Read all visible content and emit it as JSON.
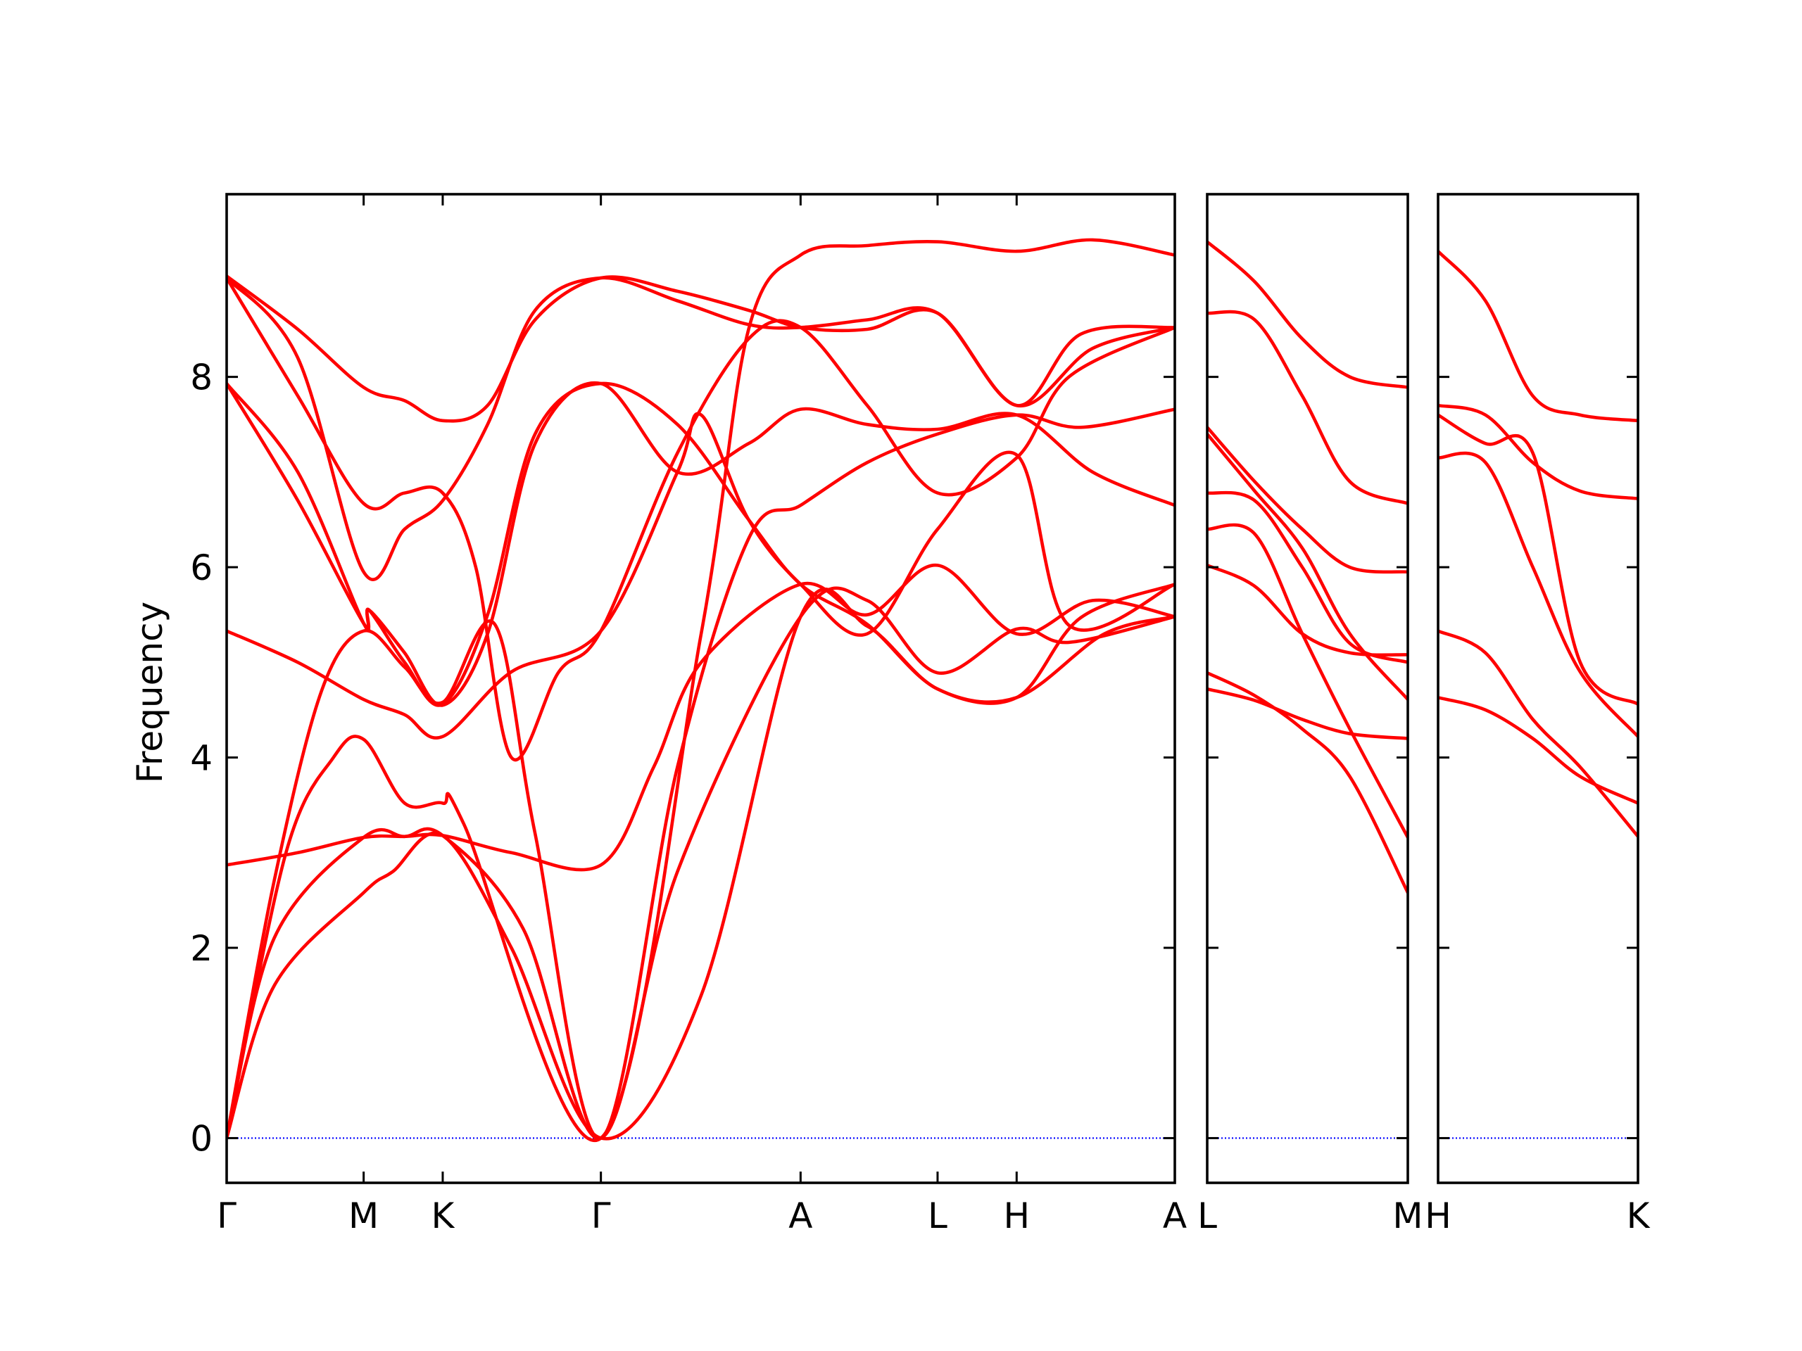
{
  "chart_data": {
    "type": "line",
    "title": "",
    "ylabel": "Frequency",
    "xlabel": "",
    "ylim": [
      -0.47,
      9.92
    ],
    "yticks": [
      0,
      2,
      4,
      6,
      8
    ],
    "grid": false,
    "colors": {
      "bands": "#ff0000",
      "zero_line": "#0000ff",
      "axes": "#000000"
    },
    "panels": [
      {
        "path": [
          "Γ",
          "M",
          "K",
          "Γ",
          "A",
          "L",
          "H",
          "A"
        ],
        "x": [
          0.0,
          0.5774,
          0.9107,
          1.5774,
          2.4191,
          2.9965,
          3.3298,
          3.9965
        ],
        "xlim": [
          0.0,
          3.9965
        ],
        "bands": [
          [
            [
              0.0,
              0.0
            ],
            [
              0.2,
              1.6
            ],
            [
              0.5774,
              2.58
            ],
            [
              0.7,
              2.8
            ],
            [
              0.9107,
              3.18
            ],
            [
              1.2,
              2.0
            ],
            [
              1.5774,
              0.0
            ],
            [
              2.0,
              1.5
            ],
            [
              2.4191,
              5.48
            ],
            [
              2.7,
              5.38
            ],
            [
              2.9965,
              4.72
            ],
            [
              3.3298,
              4.63
            ],
            [
              3.7,
              5.3
            ],
            [
              3.9965,
              5.48
            ]
          ],
          [
            [
              0.0,
              0.0
            ],
            [
              0.2,
              2.1
            ],
            [
              0.5774,
              3.16
            ],
            [
              0.75,
              3.17
            ],
            [
              0.9107,
              3.18
            ],
            [
              1.25,
              2.2
            ],
            [
              1.5774,
              0.0
            ],
            [
              1.9,
              2.8
            ],
            [
              2.4191,
              5.48
            ],
            [
              2.7,
              5.65
            ],
            [
              2.9965,
              4.89
            ],
            [
              3.3298,
              5.35
            ],
            [
              3.55,
              5.21
            ],
            [
              3.9965,
              5.48
            ]
          ],
          [
            [
              0.0,
              2.87
            ],
            [
              0.3,
              3.0
            ],
            [
              0.5774,
              3.16
            ],
            [
              0.75,
              3.17
            ],
            [
              0.9107,
              3.18
            ],
            [
              1.2,
              3.0
            ],
            [
              1.5774,
              2.87
            ],
            [
              1.8,
              3.9
            ],
            [
              2.0,
              5.0
            ],
            [
              2.4191,
              5.82
            ],
            [
              2.7,
              5.5
            ],
            [
              2.9965,
              6.02
            ],
            [
              3.3298,
              5.3
            ],
            [
              3.65,
              5.65
            ],
            [
              3.9965,
              5.48
            ]
          ],
          [
            [
              0.0,
              0.0
            ],
            [
              0.2,
              2.7
            ],
            [
              0.4,
              4.7
            ],
            [
              0.5774,
              5.33
            ],
            [
              0.75,
              4.95
            ],
            [
              0.9107,
              4.58
            ],
            [
              1.13,
              5.4
            ],
            [
              1.3,
              3.2
            ],
            [
              1.5774,
              0.0
            ],
            [
              1.9,
              3.9
            ],
            [
              2.2,
              6.3
            ],
            [
              2.4191,
              6.65
            ],
            [
              2.7,
              7.1
            ],
            [
              2.9965,
              7.4
            ],
            [
              3.3298,
              7.6
            ],
            [
              3.6,
              7.47
            ],
            [
              3.9965,
              7.66
            ]
          ],
          [
            [
              0.0,
              5.33
            ],
            [
              0.3,
              5.0
            ],
            [
              0.5774,
              4.61
            ],
            [
              0.75,
              4.45
            ],
            [
              0.9107,
              4.22
            ],
            [
              1.2,
              4.9
            ],
            [
              1.5774,
              5.33
            ],
            [
              1.9,
              7.0
            ],
            [
              2.0,
              7.6
            ],
            [
              2.2,
              6.5
            ],
            [
              2.4191,
              5.82
            ],
            [
              2.7,
              5.3
            ],
            [
              2.9965,
              6.4
            ],
            [
              3.3298,
              7.18
            ],
            [
              3.55,
              5.39
            ],
            [
              3.9965,
              5.82
            ]
          ],
          [
            [
              0.0,
              0.0
            ],
            [
              0.25,
              3.0
            ],
            [
              0.45,
              4.0
            ],
            [
              0.5774,
              4.19
            ],
            [
              0.75,
              3.52
            ],
            [
              0.9107,
              3.52
            ],
            [
              1.0,
              3.3
            ],
            [
              1.5774,
              0.0
            ],
            [
              2.0,
              5.3
            ],
            [
              2.2,
              8.5
            ],
            [
              2.4191,
              9.28
            ],
            [
              2.7,
              9.38
            ],
            [
              2.9965,
              9.42
            ],
            [
              3.3298,
              9.32
            ],
            [
              3.65,
              9.44
            ],
            [
              3.9965,
              9.28
            ]
          ],
          [
            [
              0.0,
              7.93
            ],
            [
              0.3,
              6.7
            ],
            [
              0.5774,
              5.41
            ],
            [
              0.6,
              5.55
            ],
            [
              0.75,
              5.0
            ],
            [
              0.9107,
              4.56
            ],
            [
              1.1,
              5.5
            ],
            [
              1.3,
              7.4
            ],
            [
              1.5774,
              7.93
            ],
            [
              1.9,
              7.5
            ],
            [
              2.2,
              6.5
            ],
            [
              2.4191,
              5.82
            ],
            [
              2.7,
              5.4
            ],
            [
              2.9965,
              4.72
            ],
            [
              3.3298,
              4.63
            ],
            [
              3.6,
              5.47
            ],
            [
              3.9965,
              5.82
            ]
          ],
          [
            [
              0.0,
              7.93
            ],
            [
              0.3,
              7.0
            ],
            [
              0.5774,
              5.41
            ],
            [
              0.6,
              5.55
            ],
            [
              0.75,
              5.1
            ],
            [
              0.9107,
              4.55
            ],
            [
              1.1,
              5.3
            ],
            [
              1.3,
              7.3
            ],
            [
              1.5774,
              7.93
            ],
            [
              1.9,
              7.0
            ],
            [
              2.2,
              7.3
            ],
            [
              2.4191,
              7.66
            ],
            [
              2.7,
              7.5
            ],
            [
              2.9965,
              7.45
            ],
            [
              3.3298,
              7.6
            ],
            [
              3.65,
              7.0
            ],
            [
              3.9965,
              6.65
            ]
          ],
          [
            [
              0.0,
              9.04
            ],
            [
              0.3,
              7.8
            ],
            [
              0.5774,
              6.67
            ],
            [
              0.75,
              6.78
            ],
            [
              0.9107,
              6.78
            ],
            [
              1.05,
              6.0
            ],
            [
              1.2,
              4.0
            ],
            [
              1.4,
              4.9
            ],
            [
              1.5774,
              5.33
            ],
            [
              1.9,
              7.2
            ],
            [
              2.2,
              8.4
            ],
            [
              2.4191,
              8.52
            ],
            [
              2.7,
              7.7
            ],
            [
              2.9965,
              6.78
            ],
            [
              3.3298,
              7.15
            ],
            [
              3.55,
              8.0
            ],
            [
              3.9965,
              8.52
            ]
          ],
          [
            [
              0.0,
              9.04
            ],
            [
              0.3,
              8.2
            ],
            [
              0.5774,
              5.95
            ],
            [
              0.75,
              6.4
            ],
            [
              0.9107,
              6.7
            ],
            [
              1.1,
              7.5
            ],
            [
              1.3,
              8.7
            ],
            [
              1.5774,
              9.04
            ],
            [
              1.9,
              8.8
            ],
            [
              2.2,
              8.55
            ],
            [
              2.4191,
              8.52
            ],
            [
              2.7,
              8.6
            ],
            [
              2.9965,
              8.67
            ],
            [
              3.3298,
              7.7
            ],
            [
              3.6,
              8.45
            ],
            [
              3.9965,
              8.52
            ]
          ],
          [
            [
              0.0,
              9.06
            ],
            [
              0.3,
              8.5
            ],
            [
              0.5774,
              7.89
            ],
            [
              0.75,
              7.75
            ],
            [
              0.9107,
              7.54
            ],
            [
              1.1,
              7.7
            ],
            [
              1.3,
              8.6
            ],
            [
              1.5774,
              9.04
            ],
            [
              1.9,
              8.9
            ],
            [
              2.2,
              8.7
            ],
            [
              2.4191,
              8.52
            ],
            [
              2.7,
              8.5
            ],
            [
              2.9965,
              8.67
            ],
            [
              3.3298,
              7.7
            ],
            [
              3.65,
              8.3
            ],
            [
              3.9965,
              8.52
            ]
          ]
        ]
      },
      {
        "path": [
          "L",
          "M"
        ],
        "x": [
          0.0,
          0.8441
        ],
        "xlim": [
          0.0,
          0.8441
        ],
        "bands": [
          [
            [
              0.0,
              4.72
            ],
            [
              0.2,
              4.6
            ],
            [
              0.4,
              4.4
            ],
            [
              0.6,
              4.25
            ],
            [
              0.8441,
              4.2
            ]
          ],
          [
            [
              0.0,
              4.89
            ],
            [
              0.2,
              4.65
            ],
            [
              0.4,
              4.3
            ],
            [
              0.6,
              3.8
            ],
            [
              0.8441,
              2.58
            ]
          ],
          [
            [
              0.0,
              6.02
            ],
            [
              0.2,
              5.8
            ],
            [
              0.4,
              5.3
            ],
            [
              0.6,
              5.1
            ],
            [
              0.8441,
              5.08
            ]
          ],
          [
            [
              0.0,
              6.4
            ],
            [
              0.2,
              6.35
            ],
            [
              0.4,
              5.3
            ],
            [
              0.6,
              4.3
            ],
            [
              0.8441,
              3.16
            ]
          ],
          [
            [
              0.0,
              6.78
            ],
            [
              0.2,
              6.7
            ],
            [
              0.4,
              6.0
            ],
            [
              0.6,
              5.2
            ],
            [
              0.8441,
              5.0
            ]
          ],
          [
            [
              0.0,
              7.4
            ],
            [
              0.2,
              6.8
            ],
            [
              0.4,
              6.2
            ],
            [
              0.6,
              5.3
            ],
            [
              0.8441,
              4.61
            ]
          ],
          [
            [
              0.0,
              7.47
            ],
            [
              0.2,
              6.9
            ],
            [
              0.4,
              6.4
            ],
            [
              0.6,
              6.0
            ],
            [
              0.8441,
              5.95
            ]
          ],
          [
            [
              0.0,
              8.67
            ],
            [
              0.2,
              8.6
            ],
            [
              0.4,
              7.8
            ],
            [
              0.6,
              6.9
            ],
            [
              0.8441,
              6.67
            ]
          ],
          [
            [
              0.0,
              9.42
            ],
            [
              0.2,
              9.0
            ],
            [
              0.4,
              8.4
            ],
            [
              0.6,
              8.0
            ],
            [
              0.8441,
              7.89
            ]
          ]
        ]
      },
      {
        "path": [
          "H",
          "K"
        ],
        "x": [
          0.0,
          0.8441
        ],
        "xlim": [
          0.0,
          0.8441
        ],
        "bands": [
          [
            [
              0.0,
              4.63
            ],
            [
              0.2,
              4.5
            ],
            [
              0.4,
              4.2
            ],
            [
              0.6,
              3.8
            ],
            [
              0.8441,
              3.52
            ]
          ],
          [
            [
              0.0,
              5.33
            ],
            [
              0.2,
              5.1
            ],
            [
              0.4,
              4.4
            ],
            [
              0.6,
              3.9
            ],
            [
              0.8441,
              3.17
            ]
          ],
          [
            [
              0.0,
              7.15
            ],
            [
              0.2,
              7.1
            ],
            [
              0.4,
              6.0
            ],
            [
              0.6,
              4.9
            ],
            [
              0.8441,
              4.22
            ]
          ],
          [
            [
              0.0,
              7.6
            ],
            [
              0.2,
              7.3
            ],
            [
              0.4,
              7.2
            ],
            [
              0.6,
              5.0
            ],
            [
              0.8441,
              4.56
            ]
          ],
          [
            [
              0.0,
              7.7
            ],
            [
              0.2,
              7.6
            ],
            [
              0.4,
              7.1
            ],
            [
              0.6,
              6.8
            ],
            [
              0.8441,
              6.72
            ]
          ],
          [
            [
              0.0,
              9.32
            ],
            [
              0.2,
              8.8
            ],
            [
              0.4,
              7.8
            ],
            [
              0.6,
              7.6
            ],
            [
              0.8441,
              7.54
            ]
          ]
        ]
      }
    ]
  }
}
